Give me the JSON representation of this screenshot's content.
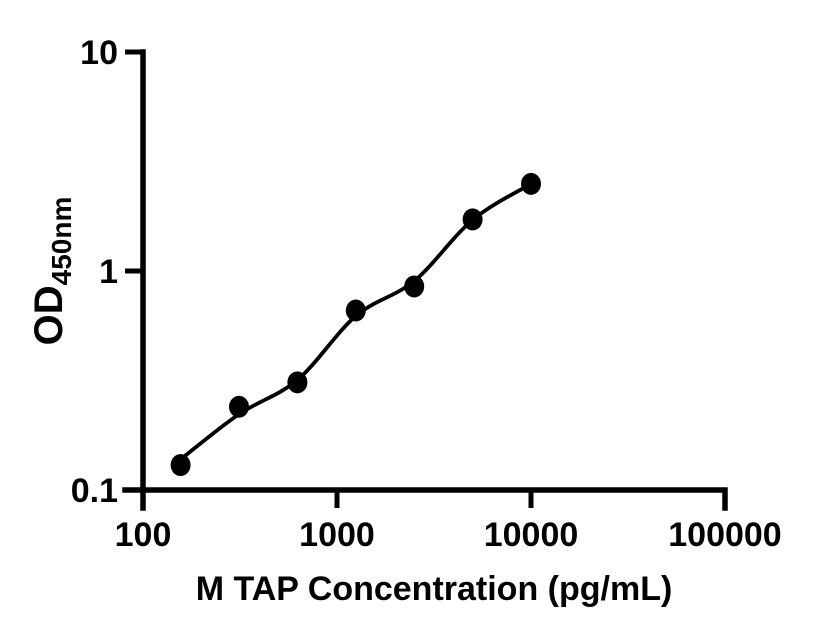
{
  "figure": {
    "background": "#ffffff",
    "foreground": "#000000"
  },
  "chart_data": {
    "type": "scatter",
    "title": "",
    "xlabel": "M TAP Concentration (pg/mL)",
    "ylabel_main": "OD",
    "ylabel_sub": "450nm",
    "x_scale": "log",
    "y_scale": "log",
    "xlim": [
      100,
      100000
    ],
    "ylim": [
      0.1,
      10
    ],
    "x_ticks": [
      {
        "value": 100,
        "label": "100"
      },
      {
        "value": 1000,
        "label": "1000"
      },
      {
        "value": 10000,
        "label": "10000"
      },
      {
        "value": 100000,
        "label": "100000"
      }
    ],
    "y_ticks": [
      {
        "value": 10,
        "label": "10"
      },
      {
        "value": 1,
        "label": "1"
      },
      {
        "value": 0.1,
        "label": "0.1"
      }
    ],
    "grid": false,
    "legend": null,
    "series": [
      {
        "name": "standard-points",
        "marker": "circle",
        "color": "#000000",
        "points": [
          [
            156.25,
            0.13
          ],
          [
            312.5,
            0.24
          ],
          [
            625,
            0.31
          ],
          [
            1250,
            0.66
          ],
          [
            2500,
            0.85
          ],
          [
            5000,
            1.72
          ],
          [
            10000,
            2.5
          ]
        ]
      }
    ],
    "fit_line": {
      "name": "four-parameter-fit",
      "color": "#000000",
      "points": [
        [
          156.25,
          0.138
        ],
        [
          312.5,
          0.222
        ],
        [
          625,
          0.318
        ],
        [
          1250,
          0.623
        ],
        [
          2500,
          0.9
        ],
        [
          5000,
          1.71
        ],
        [
          10000,
          2.5
        ]
      ]
    }
  }
}
